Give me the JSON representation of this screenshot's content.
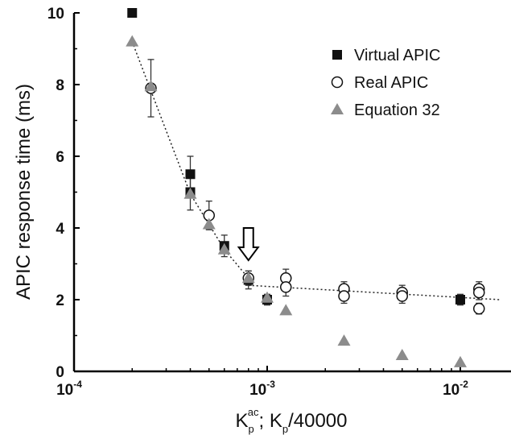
{
  "chart_data": {
    "type": "scatter",
    "title": "",
    "xlabel": {
      "k1": "K",
      "k1_sub": "p",
      "k1_sup": "ac",
      "rest": "; K",
      "k2_sub": "p",
      "tail": "/40000"
    },
    "ylabel": "APIC response time (ms)",
    "x_scale": "log",
    "xlim": [
      0.0001,
      0.017
    ],
    "ylim": [
      0,
      10
    ],
    "x_ticks": [
      {
        "value": 0.0001,
        "base": "10",
        "exp": "-4"
      },
      {
        "value": 0.001,
        "base": "10",
        "exp": "-3"
      },
      {
        "value": 0.01,
        "base": "10",
        "exp": "-2"
      }
    ],
    "y_ticks": [
      "0",
      "2",
      "4",
      "6",
      "8",
      "10"
    ],
    "legend_position": "top-right",
    "series": [
      {
        "name": "Virtual APIC",
        "marker": "square-filled",
        "color": "#111111",
        "points": [
          {
            "x": 0.0002,
            "y": 10.0,
            "err": 0
          },
          {
            "x": 0.0004,
            "y": 5.5,
            "err": 0.5
          },
          {
            "x": 0.0004,
            "y": 5.0,
            "err": 0.5
          },
          {
            "x": 0.0006,
            "y": 3.5,
            "err": 0.3
          },
          {
            "x": 0.0008,
            "y": 2.55,
            "err": 0.25
          },
          {
            "x": 0.001,
            "y": 2.0,
            "err": 0.15
          },
          {
            "x": 0.01,
            "y": 2.0,
            "err": 0.15
          }
        ]
      },
      {
        "name": "Real APIC",
        "marker": "circle-open",
        "color": "#111111",
        "points": [
          {
            "x": 0.00025,
            "y": 7.9,
            "err": 0.8
          },
          {
            "x": 0.0005,
            "y": 4.35,
            "err": 0.4
          },
          {
            "x": 0.0008,
            "y": 2.6,
            "err": 0.2
          },
          {
            "x": 0.00125,
            "y": 2.6,
            "err": 0.25
          },
          {
            "x": 0.00125,
            "y": 2.35,
            "err": 0.25
          },
          {
            "x": 0.0025,
            "y": 2.3,
            "err": 0.2
          },
          {
            "x": 0.0025,
            "y": 2.1,
            "err": 0.2
          },
          {
            "x": 0.005,
            "y": 2.2,
            "err": 0.2
          },
          {
            "x": 0.005,
            "y": 2.1,
            "err": 0.2
          },
          {
            "x": 0.0125,
            "y": 2.3,
            "err": 0.2
          },
          {
            "x": 0.0125,
            "y": 2.2,
            "err": 0.2
          },
          {
            "x": 0.0125,
            "y": 1.75,
            "err": 0.15
          }
        ]
      },
      {
        "name": "Equation 32",
        "marker": "triangle-filled",
        "color": "#8c8c8c",
        "points": [
          {
            "x": 0.0002,
            "y": 9.2,
            "err": 0
          },
          {
            "x": 0.00025,
            "y": 7.95,
            "err": 0
          },
          {
            "x": 0.0004,
            "y": 4.95,
            "err": 0
          },
          {
            "x": 0.0005,
            "y": 4.1,
            "err": 0
          },
          {
            "x": 0.0006,
            "y": 3.4,
            "err": 0
          },
          {
            "x": 0.0008,
            "y": 2.6,
            "err": 0
          },
          {
            "x": 0.001,
            "y": 2.05,
            "err": 0
          },
          {
            "x": 0.00125,
            "y": 1.7,
            "err": 0
          },
          {
            "x": 0.0025,
            "y": 0.85,
            "err": 0
          },
          {
            "x": 0.005,
            "y": 0.45,
            "err": 0
          },
          {
            "x": 0.01,
            "y": 0.25,
            "err": 0
          }
        ]
      }
    ],
    "fit_lines": [
      {
        "style": "dotted",
        "points": [
          {
            "x": 0.0002,
            "y": 9.2
          },
          {
            "x": 0.0004,
            "y": 4.95
          },
          {
            "x": 0.0005,
            "y": 4.1
          },
          {
            "x": 0.0006,
            "y": 3.4
          },
          {
            "x": 0.0008,
            "y": 2.6
          }
        ]
      },
      {
        "style": "dotted",
        "points": [
          {
            "x": 0.0008,
            "y": 2.4
          },
          {
            "x": 0.016,
            "y": 2.0
          }
        ]
      }
    ],
    "annotations": [
      {
        "type": "down-arrow",
        "x": 0.0008,
        "y_tip": 3.1,
        "y_top": 4.0
      }
    ]
  }
}
